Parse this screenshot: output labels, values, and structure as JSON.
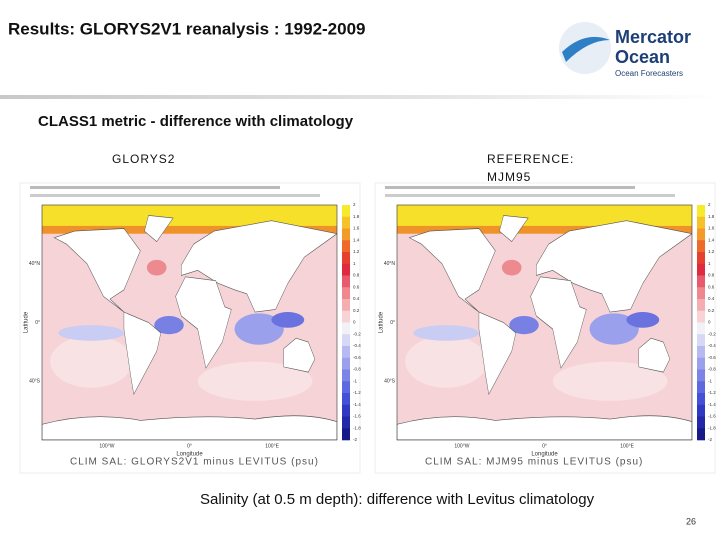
{
  "header": {
    "title": "Results: GLORYS2V1 reanalysis :  1992-2009",
    "logo": {
      "line1": "Mercator",
      "line2": "Ocean",
      "tagline": "Ocean Forecasters"
    }
  },
  "subtitle": "CLASS1  metric - difference with climatology",
  "panels": [
    {
      "label": [
        "GLORYS2"
      ],
      "caption": "CLIM SAL: GLORYS2V1 minus LEVITUS (psu)"
    },
    {
      "label": [
        "REFERENCE:",
        "MJM95"
      ],
      "caption": "CLIM SAL: MJM95 minus LEVITUS (psu)"
    }
  ],
  "axes": {
    "y_title": "Latitude",
    "x_title": "Longitude",
    "lat_ticks": [
      "40°N",
      "0°",
      "40°S"
    ],
    "lon_ticks": [
      "100°W",
      "0°",
      "100°E"
    ]
  },
  "colorbar": {
    "labels": [
      "2",
      "1.8",
      "1.6",
      "1.4",
      "1.2",
      "1",
      "0.8",
      "0.6",
      "0.4",
      "0.2",
      "0",
      "-0.2",
      "-0.4",
      "-0.6",
      "-0.8",
      "-1",
      "-1.2",
      "-1.4",
      "-1.6",
      "-1.8",
      "-2"
    ],
    "colors": [
      "#f6ea2a",
      "#f6c22a",
      "#f39a2a",
      "#ee6a2a",
      "#e8402e",
      "#e02a3e",
      "#e85a6e",
      "#f0868e",
      "#f4aeb2",
      "#f8d2d4",
      "#f1f1f8",
      "#d6d8f6",
      "#b6baf0",
      "#9aa0ec",
      "#7c84e6",
      "#5e68e0",
      "#4450d6",
      "#3038c4",
      "#2228a8",
      "#161a88"
    ]
  },
  "footer": {
    "note": "Salinity (at 0.5 m depth): difference with Levitus climatology",
    "page": "26"
  }
}
